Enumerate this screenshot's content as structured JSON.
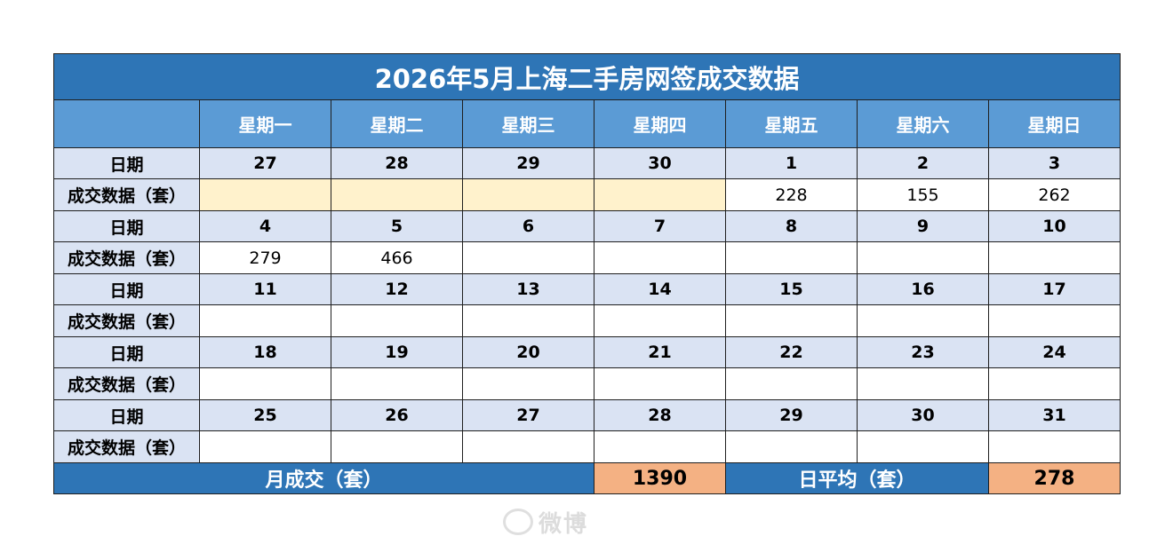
{
  "title": "2026年5月上海二手房网签成交数据",
  "weekdays": [
    "星期一",
    "星期二",
    "星期三",
    "星期四",
    "星期五",
    "星期六",
    "星期日"
  ],
  "row_labels": {
    "date": "日期",
    "deals": "成交数据（套）"
  },
  "weeks": [
    {
      "dates": [
        "27",
        "28",
        "29",
        "30",
        "1",
        "2",
        "3"
      ],
      "deals": [
        "",
        "",
        "",
        "",
        "228",
        "155",
        "262"
      ]
    },
    {
      "dates": [
        "4",
        "5",
        "6",
        "7",
        "8",
        "9",
        "10"
      ],
      "deals": [
        "279",
        "466",
        "",
        "",
        "",
        "",
        ""
      ]
    },
    {
      "dates": [
        "11",
        "12",
        "13",
        "14",
        "15",
        "16",
        "17"
      ],
      "deals": [
        "",
        "",
        "",
        "",
        "",
        "",
        ""
      ]
    },
    {
      "dates": [
        "18",
        "19",
        "20",
        "21",
        "22",
        "23",
        "24"
      ],
      "deals": [
        "",
        "",
        "",
        "",
        "",
        "",
        ""
      ]
    },
    {
      "dates": [
        "25",
        "26",
        "27",
        "28",
        "29",
        "30",
        "31"
      ],
      "deals": [
        "",
        "",
        "",
        "",
        "",
        "",
        ""
      ]
    }
  ],
  "footer": {
    "monthly_label": "月成交（套）",
    "monthly_value": "1390",
    "daily_avg_label": "日平均（套）",
    "daily_avg_value": "278"
  },
  "colors": {
    "title_bg": "#2e75b6",
    "header_bg": "#5b9bd5",
    "label_bg": "#dae3f3",
    "out_of_month_bg": "#fff2cc",
    "footer_value_bg": "#f4b183"
  },
  "watermark": {
    "icon": "weibo-logo-icon",
    "text": "微博"
  }
}
